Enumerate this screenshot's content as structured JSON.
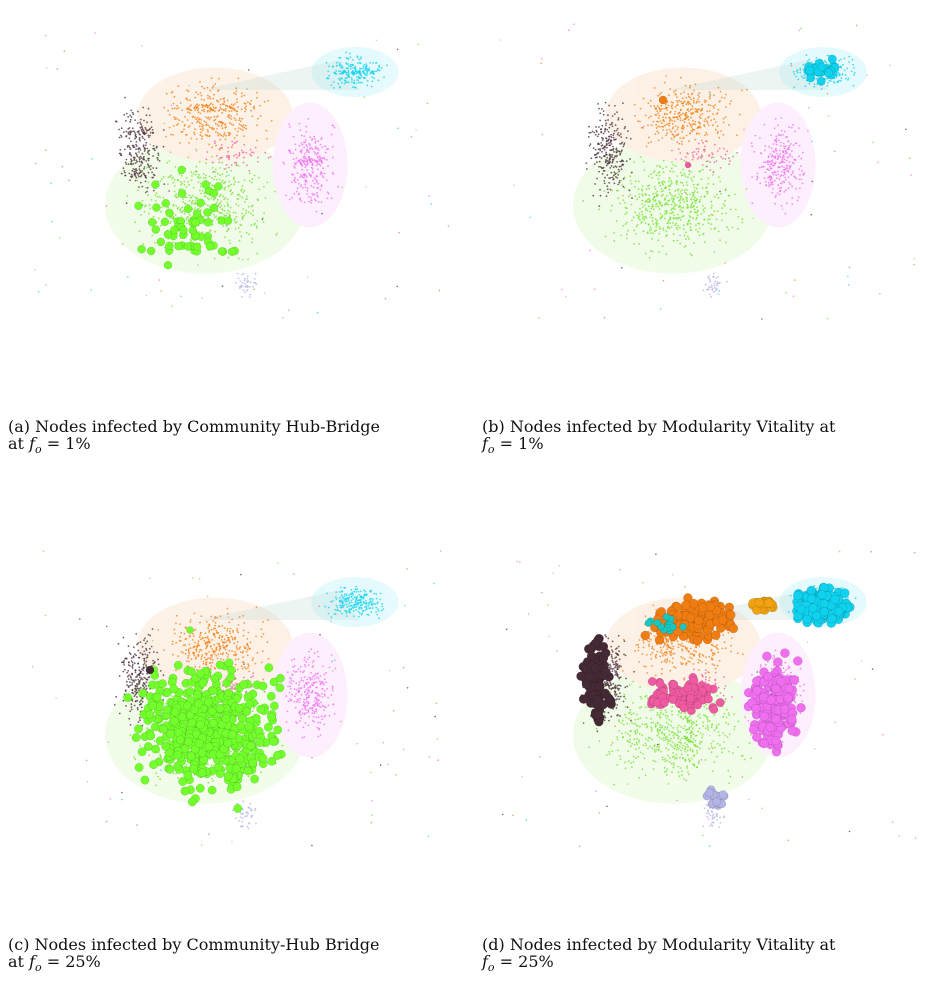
{
  "panels": [
    {
      "id": "a",
      "caption_line1": "(a) Nodes infected by Community Hub-Bridge",
      "caption_line2_prefix": "at ",
      "fo_value": "= 1%",
      "highlighted_communities": [
        "green"
      ]
    },
    {
      "id": "b",
      "caption_line1": "(b) Nodes infected by Modularity Vitality at",
      "caption_line2_prefix": "",
      "fo_value": "= 1%",
      "highlighted_communities": [
        "cyan",
        "orange",
        "pink"
      ]
    },
    {
      "id": "c",
      "caption_line1": "(c) Nodes infected by Community-Hub Bridge",
      "caption_line2_prefix": "at ",
      "fo_value": "= 25%",
      "highlighted_communities": [
        "green"
      ]
    },
    {
      "id": "d",
      "caption_line1": "(d) Nodes infected by Modularity Vitality at",
      "caption_line2_prefix": "",
      "fo_value": "= 25%",
      "highlighted_communities": [
        "cyan",
        "orange",
        "amber",
        "violet",
        "dark",
        "rose",
        "lavender",
        "teal"
      ]
    }
  ],
  "colors": {
    "cyan": "#0fd2ee",
    "orange": "#f07d12",
    "amber": "#f2a312",
    "green": "#72e22c",
    "green_bright": "#72ff2c",
    "violet": "#f06ef0",
    "dark": "#452a35",
    "rose": "#ef5aa0",
    "lavender": "#b4b4e6",
    "teal": "#18c8c0"
  }
}
